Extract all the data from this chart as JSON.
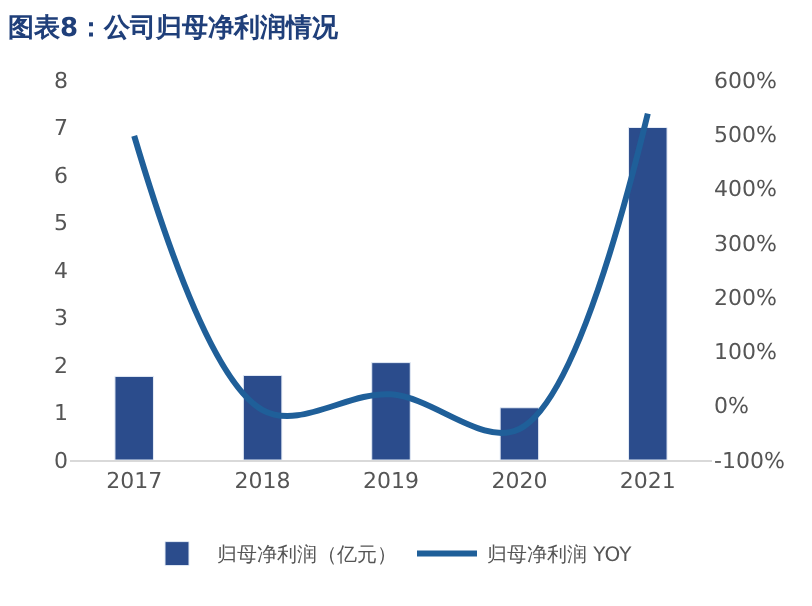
{
  "chart_data": {
    "type": "bar",
    "title": "图表8：公司归母净利润情况",
    "categories": [
      "2017",
      "2018",
      "2019",
      "2020",
      "2021"
    ],
    "series": [
      {
        "name": "归母净利润（亿元）",
        "color": "#2b4c8c",
        "values": [
          1.76,
          1.78,
          2.05,
          1.1,
          7.0
        ]
      },
      {
        "name": "归母净利润 YOY",
        "type": "line",
        "axis": "y2",
        "color": "#1f5f99",
        "values": [
          497,
          -8,
          21,
          -43,
          538
        ],
        "marker": "none",
        "line_style": "solid"
      }
    ],
    "ylim": [
      0,
      8
    ],
    "yticks": [
      0,
      1,
      2,
      3,
      4,
      5,
      6,
      7,
      8
    ],
    "y2lim": [
      -100,
      600
    ],
    "y2ticks": [
      {
        "value": -100,
        "label": "-100%"
      },
      {
        "value": 0,
        "label": "0%"
      },
      {
        "value": 100,
        "label": "100%"
      },
      {
        "value": 200,
        "label": "200%"
      },
      {
        "value": 300,
        "label": "300%"
      },
      {
        "value": 400,
        "label": "400%"
      },
      {
        "value": 500,
        "label": "500%"
      },
      {
        "value": 600,
        "label": "600%"
      }
    ],
    "legend": "bottom"
  }
}
